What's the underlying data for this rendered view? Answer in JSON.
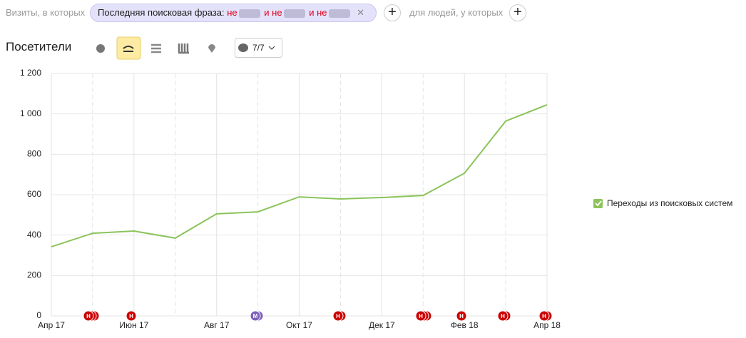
{
  "filter": {
    "prefix": "Визиты, в которых",
    "label": "Последняя поисковая фраза:",
    "parts": [
      "не",
      "и не",
      "и не"
    ],
    "suffix": "для людей, у которых"
  },
  "dropdown": "7/7",
  "chart_data": {
    "type": "line",
    "title": "Посетители",
    "categories": [
      "Апр 17",
      null,
      "Июн 17",
      null,
      "Авг 17",
      null,
      "Окт 17",
      null,
      "Дек 17",
      null,
      "Фев 18",
      null,
      "Апр 18"
    ],
    "series": [
      {
        "name": "Переходы из поисковых систем",
        "color": "#8bc45a",
        "values": [
          342,
          409,
          420,
          385,
          505,
          515,
          589,
          579,
          586,
          596,
          706,
          964,
          1045
        ]
      }
    ],
    "ylim": [
      0,
      1200
    ],
    "yticks": [
      0,
      200,
      400,
      600,
      800,
      {
        "value": 1000,
        "label": "1 000"
      },
      {
        "value": 1200,
        "label": "1 200"
      }
    ],
    "grid": true,
    "legend": "right",
    "annotations": [
      "Н",
      "Н",
      "М",
      "Н",
      "Н",
      "Н",
      "Н",
      "Н"
    ]
  }
}
